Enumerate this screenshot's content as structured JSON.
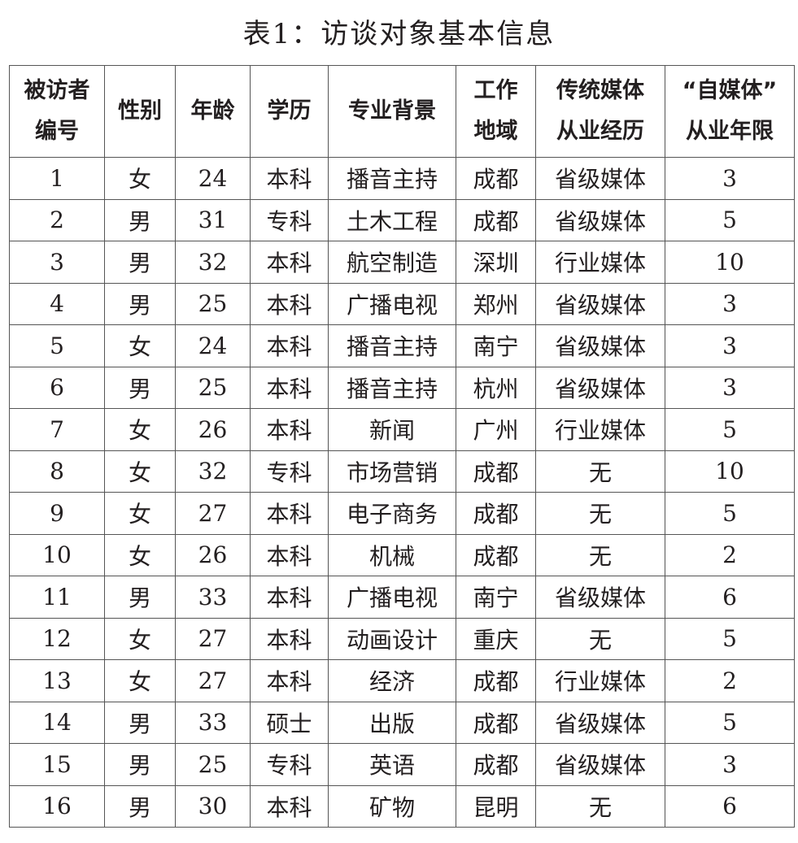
{
  "title": "表1：访谈对象基本信息",
  "headers": [
    [
      "被访者",
      "编号"
    ],
    [
      "性别"
    ],
    [
      "年龄"
    ],
    [
      "学历"
    ],
    [
      "专业背景"
    ],
    [
      "工作",
      "地域"
    ],
    [
      "传统媒体",
      "从业经历"
    ],
    [
      "“自媒体”",
      "从业年限"
    ]
  ],
  "rows": [
    [
      "1",
      "女",
      "24",
      "本科",
      "播音主持",
      "成都",
      "省级媒体",
      "3"
    ],
    [
      "2",
      "男",
      "31",
      "专科",
      "土木工程",
      "成都",
      "省级媒体",
      "5"
    ],
    [
      "3",
      "男",
      "32",
      "本科",
      "航空制造",
      "深圳",
      "行业媒体",
      "10"
    ],
    [
      "4",
      "男",
      "25",
      "本科",
      "广播电视",
      "郑州",
      "省级媒体",
      "3"
    ],
    [
      "5",
      "女",
      "24",
      "本科",
      "播音主持",
      "南宁",
      "省级媒体",
      "3"
    ],
    [
      "6",
      "男",
      "25",
      "本科",
      "播音主持",
      "杭州",
      "省级媒体",
      "3"
    ],
    [
      "7",
      "女",
      "26",
      "本科",
      "新闻",
      "广州",
      "行业媒体",
      "5"
    ],
    [
      "8",
      "女",
      "32",
      "专科",
      "市场营销",
      "成都",
      "无",
      "10"
    ],
    [
      "9",
      "女",
      "27",
      "本科",
      "电子商务",
      "成都",
      "无",
      "5"
    ],
    [
      "10",
      "女",
      "26",
      "本科",
      "机械",
      "成都",
      "无",
      "2"
    ],
    [
      "11",
      "男",
      "33",
      "本科",
      "广播电视",
      "南宁",
      "省级媒体",
      "6"
    ],
    [
      "12",
      "女",
      "27",
      "本科",
      "动画设计",
      "重庆",
      "无",
      "5"
    ],
    [
      "13",
      "女",
      "27",
      "本科",
      "经济",
      "成都",
      "行业媒体",
      "2"
    ],
    [
      "14",
      "男",
      "33",
      "硕士",
      "出版",
      "成都",
      "省级媒体",
      "5"
    ],
    [
      "15",
      "男",
      "25",
      "专科",
      "英语",
      "成都",
      "省级媒体",
      "3"
    ],
    [
      "16",
      "男",
      "30",
      "本科",
      "矿物",
      "昆明",
      "无",
      "6"
    ]
  ]
}
